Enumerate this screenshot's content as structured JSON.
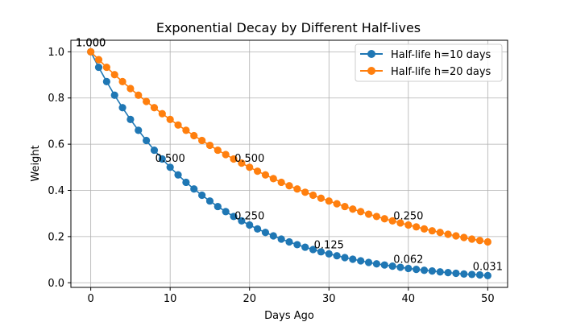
{
  "chart_data": {
    "type": "line",
    "title": "Exponential Decay by Different Half-lives",
    "xlabel": "Days Ago",
    "ylabel": "Weight",
    "xlim": [
      -2.5,
      52.5
    ],
    "ylim": [
      -0.02,
      1.05
    ],
    "xticks": [
      0,
      10,
      20,
      30,
      40,
      50
    ],
    "yticks": [
      0.0,
      0.2,
      0.4,
      0.6,
      0.8,
      1.0
    ],
    "xtick_labels": [
      "0",
      "10",
      "20",
      "30",
      "40",
      "50"
    ],
    "ytick_labels": [
      "0.0",
      "0.2",
      "0.4",
      "0.6",
      "0.8",
      "1.0"
    ],
    "grid": true,
    "legend_position": "top-right",
    "x": [
      0,
      1,
      2,
      3,
      4,
      5,
      6,
      7,
      8,
      9,
      10,
      11,
      12,
      13,
      14,
      15,
      16,
      17,
      18,
      19,
      20,
      21,
      22,
      23,
      24,
      25,
      26,
      27,
      28,
      29,
      30,
      31,
      32,
      33,
      34,
      35,
      36,
      37,
      38,
      39,
      40,
      41,
      42,
      43,
      44,
      45,
      46,
      47,
      48,
      49,
      50
    ],
    "series": [
      {
        "name": "Half-life h=10 days",
        "color": "#1f77b4",
        "values": [
          1.0,
          0.933,
          0.871,
          0.812,
          0.758,
          0.707,
          0.66,
          0.616,
          0.574,
          0.536,
          0.5,
          0.467,
          0.435,
          0.406,
          0.379,
          0.354,
          0.33,
          0.308,
          0.287,
          0.268,
          0.25,
          0.233,
          0.218,
          0.203,
          0.189,
          0.177,
          0.165,
          0.154,
          0.144,
          0.134,
          0.125,
          0.117,
          0.109,
          0.102,
          0.095,
          0.088,
          0.082,
          0.077,
          0.072,
          0.067,
          0.062,
          0.058,
          0.054,
          0.051,
          0.047,
          0.044,
          0.041,
          0.038,
          0.036,
          0.034,
          0.031
        ]
      },
      {
        "name": "Half-life h=20 days",
        "color": "#ff7f0e",
        "values": [
          1.0,
          0.966,
          0.933,
          0.901,
          0.871,
          0.841,
          0.812,
          0.785,
          0.758,
          0.732,
          0.707,
          0.683,
          0.66,
          0.637,
          0.616,
          0.595,
          0.574,
          0.555,
          0.536,
          0.518,
          0.5,
          0.483,
          0.467,
          0.451,
          0.435,
          0.42,
          0.406,
          0.392,
          0.379,
          0.366,
          0.354,
          0.342,
          0.33,
          0.319,
          0.308,
          0.297,
          0.287,
          0.277,
          0.268,
          0.259,
          0.25,
          0.242,
          0.233,
          0.225,
          0.218,
          0.21,
          0.203,
          0.196,
          0.189,
          0.183,
          0.177
        ]
      }
    ],
    "annotations": [
      {
        "x": 0,
        "y": 1.0,
        "text": "1.000"
      },
      {
        "x": 10,
        "y": 0.5,
        "text": "0.500"
      },
      {
        "x": 20,
        "y": 0.25,
        "text": "0.250"
      },
      {
        "x": 30,
        "y": 0.125,
        "text": "0.125"
      },
      {
        "x": 40,
        "y": 0.062,
        "text": "0.062"
      },
      {
        "x": 50,
        "y": 0.031,
        "text": "0.031"
      },
      {
        "x": 0,
        "y": 1.0,
        "text": "1.000"
      },
      {
        "x": 20,
        "y": 0.5,
        "text": "0.500"
      },
      {
        "x": 40,
        "y": 0.25,
        "text": "0.250"
      }
    ]
  }
}
